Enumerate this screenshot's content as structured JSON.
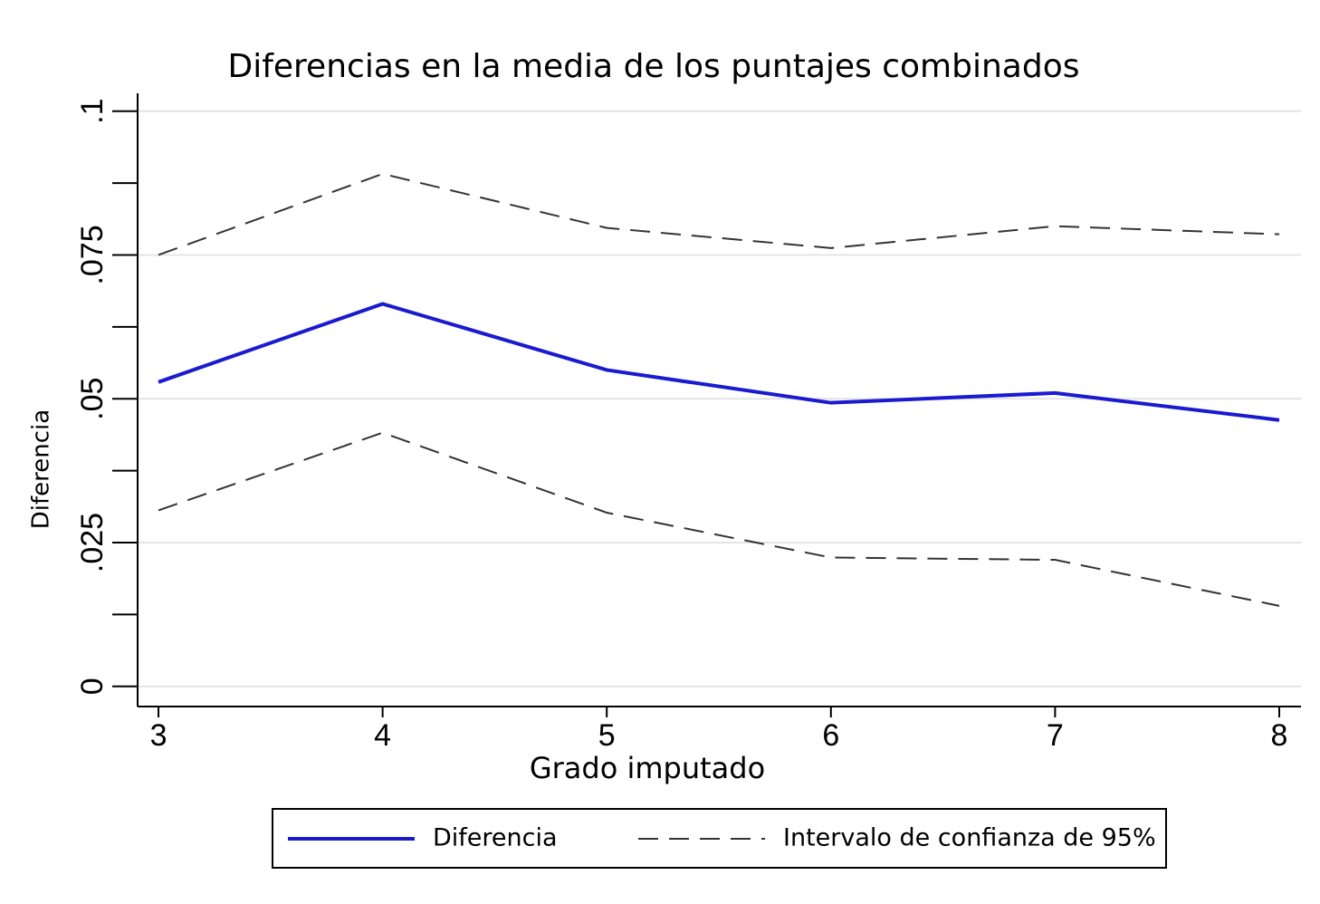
{
  "chart_data": {
    "type": "line",
    "title": "Diferencias en la media de los puntajes combinados",
    "x_label": "Grado imputado",
    "y_label": "Diferencia",
    "x": [
      3,
      4,
      5,
      6,
      7,
      8
    ],
    "series": [
      {
        "name": "Diferencia",
        "color": "#1a1ad0",
        "line_style": "solid",
        "values": [
          0.0529,
          0.0665,
          0.055,
          0.0493,
          0.051,
          0.0463
        ]
      },
      {
        "name": "Intervalo de confianza de 95%",
        "color": "#333333",
        "line_style": "dashed",
        "upper": [
          0.075,
          0.0891,
          0.0797,
          0.0762,
          0.08,
          0.0786
        ],
        "lower": [
          0.0306,
          0.0441,
          0.0302,
          0.0224,
          0.022,
          0.014
        ]
      }
    ],
    "xlim": [
      2.907,
      8.097
    ],
    "ylim": [
      -0.0035,
      0.1031
    ],
    "xticks": [
      3,
      4,
      5,
      6,
      7,
      8
    ],
    "yticks": [
      0,
      {
        "value": 0.025,
        "label": ".025"
      },
      {
        "value": 0.05,
        "label": ".05"
      },
      {
        "value": 0.075,
        "label": ".075"
      },
      {
        "value": 0.1,
        "label": ".1"
      }
    ],
    "yminorticks": [
      0.0125,
      0.0375,
      0.0625,
      0.0875
    ],
    "grid": true
  }
}
